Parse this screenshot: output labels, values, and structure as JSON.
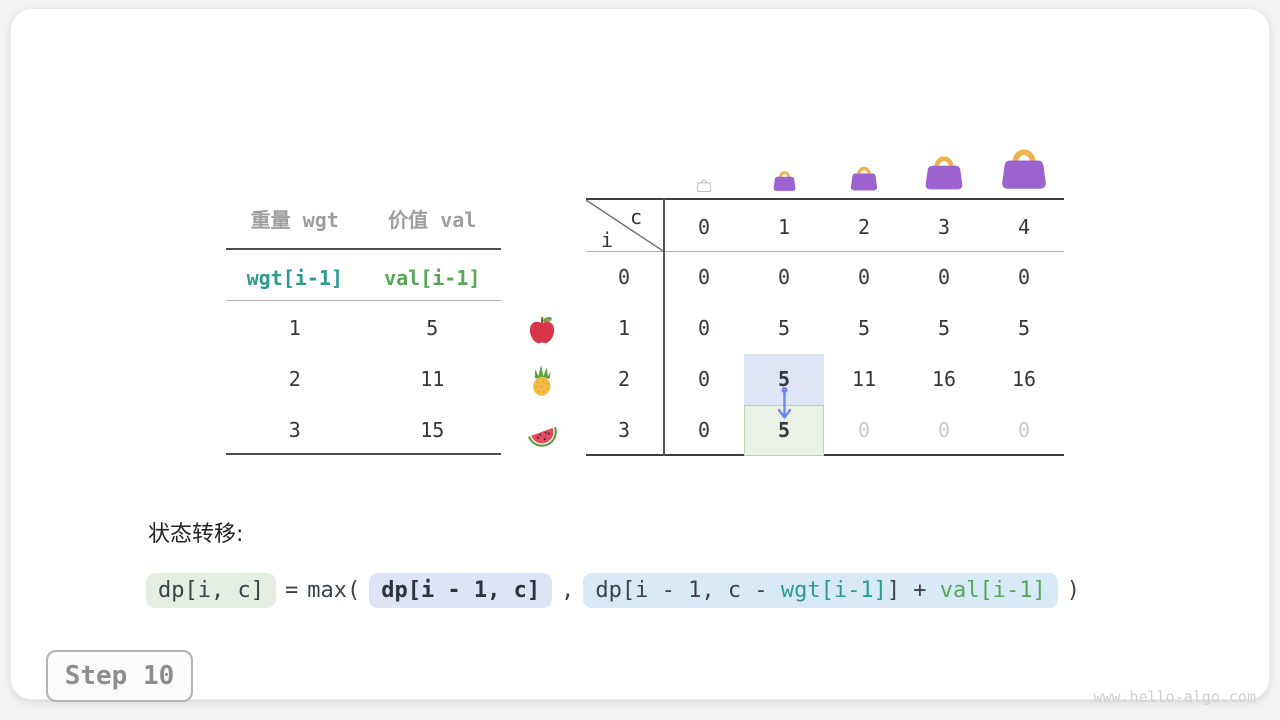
{
  "items_table": {
    "col_headers": [
      "重量 wgt",
      "价值 val"
    ],
    "index_row": [
      "wgt[i-1]",
      "val[i-1]"
    ],
    "rows": [
      {
        "wgt": "1",
        "val": "5",
        "fruit": "apple"
      },
      {
        "wgt": "2",
        "val": "11",
        "fruit": "pineapple"
      },
      {
        "wgt": "3",
        "val": "15",
        "fruit": "watermelon"
      }
    ]
  },
  "dp_table": {
    "row_var": "i",
    "col_var": "c",
    "col_headers": [
      "0",
      "1",
      "2",
      "3",
      "4"
    ],
    "row_labels": [
      "0",
      "1",
      "2",
      "3"
    ],
    "rows": [
      [
        "0",
        "0",
        "0",
        "0",
        "0"
      ],
      [
        "0",
        "5",
        "5",
        "5",
        "5"
      ],
      [
        "0",
        "5",
        "11",
        "16",
        "16"
      ],
      [
        "0",
        "5",
        "0",
        "0",
        "0"
      ]
    ],
    "bold_cells": [
      [
        2,
        1
      ],
      [
        3,
        1
      ]
    ],
    "faded_cells": [
      [
        3,
        2
      ],
      [
        3,
        3
      ],
      [
        3,
        4
      ]
    ],
    "bags": [
      "bag-empty",
      "bag-small",
      "bag-medium",
      "bag-large",
      "bag-xlarge"
    ]
  },
  "formula": {
    "section_label": "状态转移:",
    "lhs": "dp[i, c]",
    "equals": "=",
    "max_open": "max(",
    "arg1": "dp[i - 1, c]",
    "comma": ",",
    "arg2_parts": [
      {
        "text": "dp[i - 1, c - ",
        "color": "default"
      },
      {
        "text": "wgt[i-1]",
        "color": "teal"
      },
      {
        "text": "] + ",
        "color": "default"
      },
      {
        "text": "val[i-1]",
        "color": "green"
      }
    ],
    "close_paren": ")"
  },
  "footer": {
    "step_label": "Step 10",
    "watermark": "www.hello-algo.com"
  },
  "colors": {
    "teal": "#2e9a8f",
    "green": "#57a657",
    "gray_header": "#9e9e9e",
    "highlight_blue": "#dfe4f7",
    "highlight_green_bg": "#e9f2e5",
    "highlight_green_border": "#b5d8ab",
    "arrow_blue": "#6b87ea",
    "bag_purple": "#9c63d0",
    "bag_handle": "#f0b34f",
    "faded_text": "#c9c9c9"
  }
}
